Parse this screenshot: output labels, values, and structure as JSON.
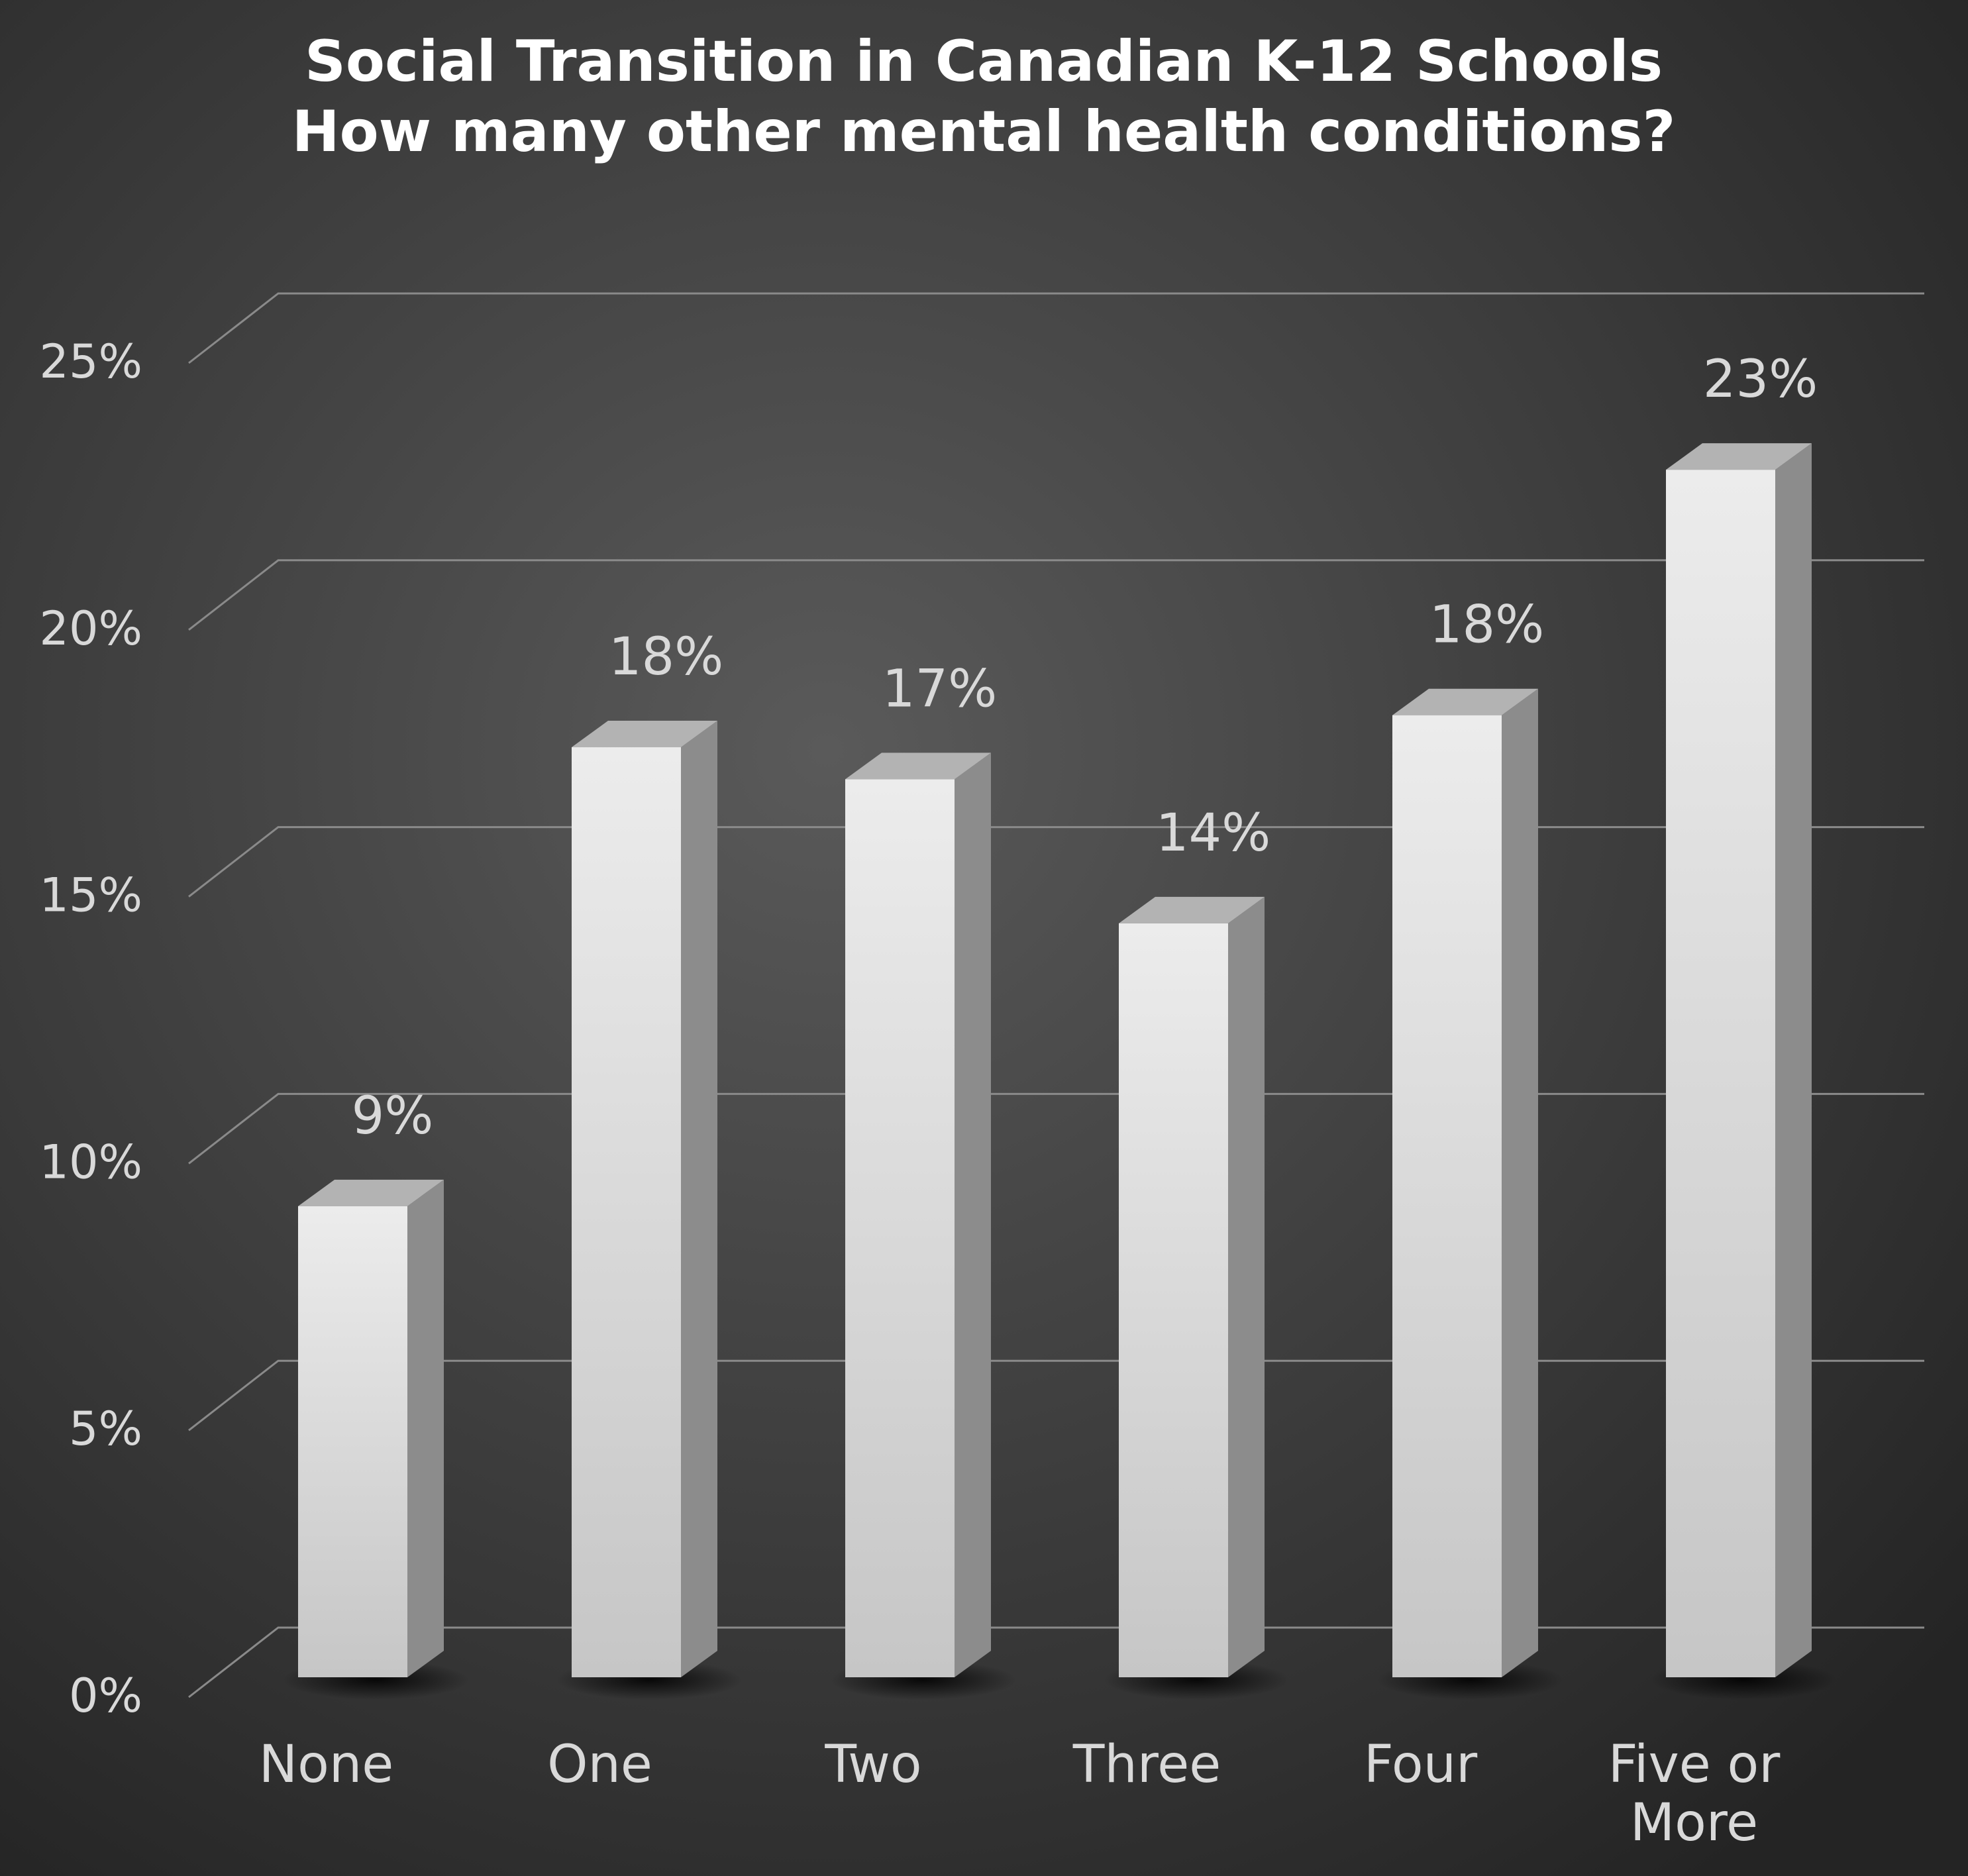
{
  "chart_data": {
    "type": "bar",
    "title": "Social Transition in Canadian K-12 Schools",
    "subtitle": "How many other mental health conditions?",
    "categories": [
      "None",
      "One",
      "Two",
      "Three",
      "Four",
      "Five or More"
    ],
    "values": [
      9.2,
      17.8,
      17.2,
      14.5,
      18.4,
      23.0
    ],
    "data_labels": [
      "9%",
      "18%",
      "17%",
      "14%",
      "18%",
      "23%"
    ],
    "y_ticks": [
      0,
      5,
      10,
      15,
      20,
      25
    ],
    "y_tick_labels": [
      "0%",
      "5%",
      "10%",
      "15%",
      "20%",
      "25%"
    ],
    "ylim": [
      0,
      25
    ],
    "grid": true,
    "colors": {
      "background_center": "#5a5a5a",
      "background_edge": "#242424",
      "bar_front_top": "#ececec",
      "bar_front_bottom": "#c6c6c6",
      "bar_top": "#b3b3b3",
      "bar_side": "#8c8c8c",
      "text": "#d9d9d9",
      "title": "#ffffff",
      "grid": "#8a8a8a"
    }
  }
}
